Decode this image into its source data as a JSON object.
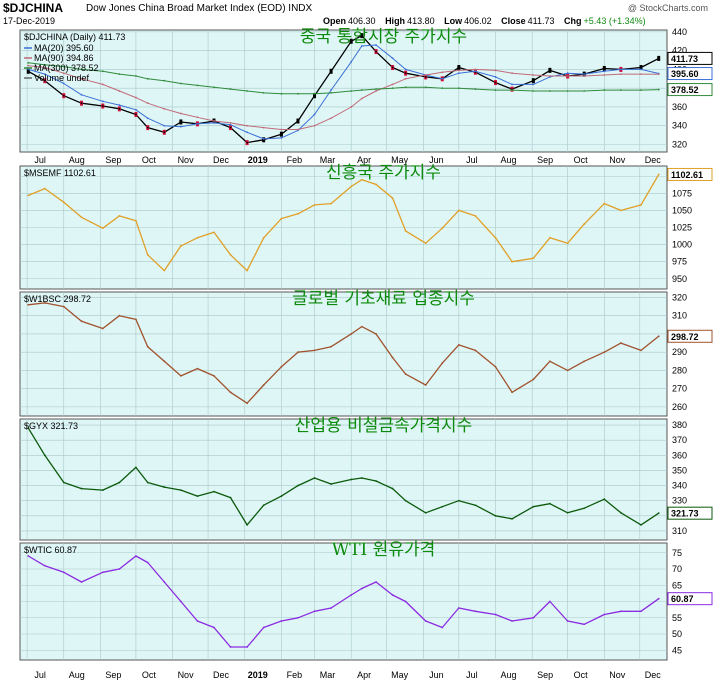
{
  "header": {
    "symbol": "$DJCHINA",
    "name": "Dow Jones China Broad Market Index (EOD)  INDX",
    "date": "17-Dec-2019",
    "watermark": "@ StockCharts.com",
    "open_label": "Open",
    "open": "406.30",
    "high_label": "High",
    "high": "413.80",
    "low_label": "Low",
    "low": "406.02",
    "close_label": "Close",
    "close": "411.73",
    "chg_label": "Chg",
    "chg": "+5.43 (+1.34%)"
  },
  "colors": {
    "panel_bg": "#dff6f6",
    "grid": "#a9c8c8",
    "main_price_up": "#000000",
    "main_price_down": "#d0103a",
    "ma20": "#3a6fd8",
    "ma90": "#c06a78",
    "ma300": "#2e8b3a",
    "msemf": "#e0a028",
    "w1bsc": "#a0522d",
    "gyx": "#0b5a0b",
    "wtic": "#8a2be2",
    "korean_title": "#0b8a0b"
  },
  "x_axis": [
    "Jul",
    "Aug",
    "Sep",
    "Oct",
    "Nov",
    "Dec",
    "2019",
    "Feb",
    "Mar",
    "Apr",
    "May",
    "Jun",
    "Jul",
    "Aug",
    "Sep",
    "Oct",
    "Nov",
    "Dec"
  ],
  "chart_data": [
    {
      "type": "line",
      "id": "djchina",
      "title": "중국 통합시장 주가지수",
      "label": "$DJCHINA (Daily) 411.73",
      "legend": [
        "MA(20) 395.60",
        "MA(90) 394.86",
        "MA(300) 378.52",
        "Volume undef"
      ],
      "ylim": [
        312,
        442
      ],
      "yticks": [
        320,
        340,
        360,
        380,
        400,
        420,
        440
      ],
      "last_tags": [
        {
          "label": "411.73",
          "value": 411.73
        },
        {
          "label": "395.60",
          "value": 395.6
        },
        {
          "label": "378.52",
          "value": 378.52
        }
      ],
      "x": [
        "2018-07-02",
        "2018-07-16",
        "2018-08-01",
        "2018-08-16",
        "2018-09-03",
        "2018-09-17",
        "2018-10-01",
        "2018-10-11",
        "2018-10-25",
        "2018-11-08",
        "2018-11-22",
        "2018-12-06",
        "2018-12-20",
        "2019-01-03",
        "2019-01-17",
        "2019-02-01",
        "2019-02-15",
        "2019-03-01",
        "2019-03-15",
        "2019-04-01",
        "2019-04-10",
        "2019-04-22",
        "2019-05-06",
        "2019-05-17",
        "2019-06-03",
        "2019-06-17",
        "2019-07-01",
        "2019-07-15",
        "2019-08-01",
        "2019-08-15",
        "2019-09-02",
        "2019-09-16",
        "2019-10-01",
        "2019-10-15",
        "2019-11-01",
        "2019-11-15",
        "2019-12-02",
        "2019-12-17"
      ],
      "series": [
        {
          "name": "$DJCHINA",
          "values": [
            398,
            388,
            372,
            364,
            361,
            358,
            352,
            338,
            333,
            344,
            342,
            345,
            338,
            322,
            325,
            331,
            345,
            372,
            398,
            430,
            436,
            419,
            402,
            396,
            392,
            390,
            402,
            397,
            386,
            379,
            388,
            399,
            393,
            395,
            401,
            400,
            402,
            411.73
          ]
        },
        {
          "name": "MA(20)",
          "values": [
            400,
            395,
            385,
            373,
            366,
            362,
            357,
            348,
            340,
            339,
            342,
            343,
            341,
            333,
            326,
            327,
            335,
            352,
            378,
            408,
            425,
            426,
            412,
            400,
            394,
            390,
            396,
            398,
            392,
            384,
            384,
            392,
            396,
            395,
            398,
            400,
            400,
            395.6
          ]
        },
        {
          "name": "MA(90)",
          "values": [
            404,
            402,
            396,
            390,
            384,
            377,
            370,
            364,
            358,
            353,
            349,
            345,
            343,
            340,
            338,
            336,
            336,
            340,
            348,
            360,
            369,
            377,
            384,
            390,
            394,
            397,
            399,
            400,
            399,
            396,
            394,
            393,
            393,
            393,
            394,
            395,
            395,
            394.86
          ]
        },
        {
          "name": "MA(300)",
          "values": [
            407,
            405,
            403,
            400,
            398,
            395,
            393,
            390,
            388,
            385,
            383,
            381,
            379,
            377,
            375,
            374,
            374,
            374,
            375,
            377,
            378,
            379,
            380,
            381,
            381,
            380,
            380,
            379,
            378,
            378,
            377,
            377,
            377,
            377,
            378,
            378,
            378,
            378.52
          ]
        }
      ]
    },
    {
      "type": "line",
      "id": "msemf",
      "title": "신흥국 주가지수",
      "label": "$MSEMF 1102.61",
      "ylim": [
        935,
        1115
      ],
      "yticks": [
        950,
        975,
        1000,
        1025,
        1050,
        1075,
        1100
      ],
      "last_tags": [
        {
          "label": "1102.61",
          "value": 1102.61
        }
      ],
      "x": [
        "2018-07-02",
        "2018-07-16",
        "2018-08-01",
        "2018-08-16",
        "2018-09-03",
        "2018-09-17",
        "2018-10-01",
        "2018-10-11",
        "2018-10-25",
        "2018-11-08",
        "2018-11-22",
        "2018-12-06",
        "2018-12-20",
        "2019-01-03",
        "2019-01-17",
        "2019-02-01",
        "2019-02-15",
        "2019-03-01",
        "2019-03-15",
        "2019-04-01",
        "2019-04-10",
        "2019-04-22",
        "2019-05-06",
        "2019-05-17",
        "2019-06-03",
        "2019-06-17",
        "2019-07-01",
        "2019-07-15",
        "2019-08-01",
        "2019-08-15",
        "2019-09-02",
        "2019-09-16",
        "2019-10-01",
        "2019-10-15",
        "2019-11-01",
        "2019-11-15",
        "2019-12-02",
        "2019-12-17"
      ],
      "series": [
        {
          "name": "$MSEMF",
          "values": [
            1072,
            1082,
            1062,
            1040,
            1024,
            1042,
            1035,
            985,
            962,
            998,
            1010,
            1018,
            985,
            962,
            1010,
            1038,
            1045,
            1058,
            1060,
            1085,
            1095,
            1088,
            1068,
            1020,
            1002,
            1024,
            1050,
            1042,
            1010,
            975,
            980,
            1010,
            1002,
            1030,
            1060,
            1050,
            1058,
            1102.61
          ]
        }
      ]
    },
    {
      "type": "line",
      "id": "w1bsc",
      "title": "글로벌 기초재료 업종지수",
      "label": "$W1BSC 298.72",
      "ylim": [
        255,
        323
      ],
      "yticks": [
        260,
        270,
        280,
        290,
        300,
        310,
        320
      ],
      "last_tags": [
        {
          "label": "298.72",
          "value": 298.72
        }
      ],
      "x": [
        "2018-07-02",
        "2018-07-16",
        "2018-08-01",
        "2018-08-16",
        "2018-09-03",
        "2018-09-17",
        "2018-10-01",
        "2018-10-11",
        "2018-10-25",
        "2018-11-08",
        "2018-11-22",
        "2018-12-06",
        "2018-12-20",
        "2019-01-03",
        "2019-01-17",
        "2019-02-01",
        "2019-02-15",
        "2019-03-01",
        "2019-03-15",
        "2019-04-01",
        "2019-04-10",
        "2019-04-22",
        "2019-05-06",
        "2019-05-17",
        "2019-06-03",
        "2019-06-17",
        "2019-07-01",
        "2019-07-15",
        "2019-08-01",
        "2019-08-15",
        "2019-09-02",
        "2019-09-16",
        "2019-10-01",
        "2019-10-15",
        "2019-11-01",
        "2019-11-15",
        "2019-12-02",
        "2019-12-17"
      ],
      "series": [
        {
          "name": "$W1BSC",
          "values": [
            316,
            317,
            315,
            307,
            303,
            310,
            308,
            293,
            285,
            277,
            281,
            277,
            268,
            262,
            272,
            282,
            290,
            291,
            293,
            300,
            304,
            300,
            287,
            278,
            272,
            284,
            294,
            291,
            282,
            268,
            275,
            285,
            280,
            285,
            290,
            295,
            291,
            298.72
          ]
        }
      ]
    },
    {
      "type": "line",
      "id": "gyx",
      "title": "산업용 비철금속가격지수",
      "label": "$GYX 321.73",
      "ylim": [
        304,
        384
      ],
      "yticks": [
        310,
        320,
        330,
        340,
        350,
        360,
        370,
        380
      ],
      "last_tags": [
        {
          "label": "321.73",
          "value": 321.73
        }
      ],
      "x": [
        "2018-07-02",
        "2018-07-16",
        "2018-08-01",
        "2018-08-16",
        "2018-09-03",
        "2018-09-17",
        "2018-10-01",
        "2018-10-11",
        "2018-10-25",
        "2018-11-08",
        "2018-11-22",
        "2018-12-06",
        "2018-12-20",
        "2019-01-03",
        "2019-01-17",
        "2019-02-01",
        "2019-02-15",
        "2019-03-01",
        "2019-03-15",
        "2019-04-01",
        "2019-04-10",
        "2019-04-22",
        "2019-05-06",
        "2019-05-17",
        "2019-06-03",
        "2019-06-17",
        "2019-07-01",
        "2019-07-15",
        "2019-08-01",
        "2019-08-15",
        "2019-09-02",
        "2019-09-16",
        "2019-10-01",
        "2019-10-15",
        "2019-11-01",
        "2019-11-15",
        "2019-12-02",
        "2019-12-17"
      ],
      "series": [
        {
          "name": "$GYX",
          "values": [
            378,
            360,
            342,
            338,
            337,
            342,
            352,
            342,
            339,
            337,
            333,
            336,
            332,
            314,
            327,
            333,
            340,
            345,
            341,
            344,
            345,
            343,
            338,
            330,
            322,
            326,
            330,
            327,
            320,
            318,
            326,
            328,
            322,
            325,
            331,
            322,
            314,
            321.73
          ]
        }
      ]
    },
    {
      "type": "line",
      "id": "wtic",
      "title": "WTI 원유가격",
      "label": "$WTIC 60.87",
      "ylim": [
        42,
        78
      ],
      "yticks": [
        45,
        50,
        55,
        60,
        65,
        70,
        75
      ],
      "last_tags": [
        {
          "label": "60.87",
          "value": 60.87
        }
      ],
      "x": [
        "2018-07-02",
        "2018-07-16",
        "2018-08-01",
        "2018-08-16",
        "2018-09-03",
        "2018-09-17",
        "2018-10-01",
        "2018-10-11",
        "2018-10-25",
        "2018-11-08",
        "2018-11-22",
        "2018-12-06",
        "2018-12-20",
        "2019-01-03",
        "2019-01-17",
        "2019-02-01",
        "2019-02-15",
        "2019-03-01",
        "2019-03-15",
        "2019-04-01",
        "2019-04-10",
        "2019-04-22",
        "2019-05-06",
        "2019-05-17",
        "2019-06-03",
        "2019-06-17",
        "2019-07-01",
        "2019-07-15",
        "2019-08-01",
        "2019-08-15",
        "2019-09-02",
        "2019-09-16",
        "2019-10-01",
        "2019-10-15",
        "2019-11-01",
        "2019-11-15",
        "2019-12-02",
        "2019-12-17"
      ],
      "series": [
        {
          "name": "$WTIC",
          "values": [
            74,
            71,
            69,
            66,
            69,
            70,
            74,
            72,
            66,
            60,
            54,
            52,
            46,
            46,
            52,
            54,
            55,
            57,
            58,
            62,
            64,
            66,
            62,
            60,
            54,
            52,
            58,
            57,
            56,
            54,
            55,
            60,
            54,
            53,
            56,
            57,
            57,
            60.87
          ]
        }
      ]
    }
  ]
}
